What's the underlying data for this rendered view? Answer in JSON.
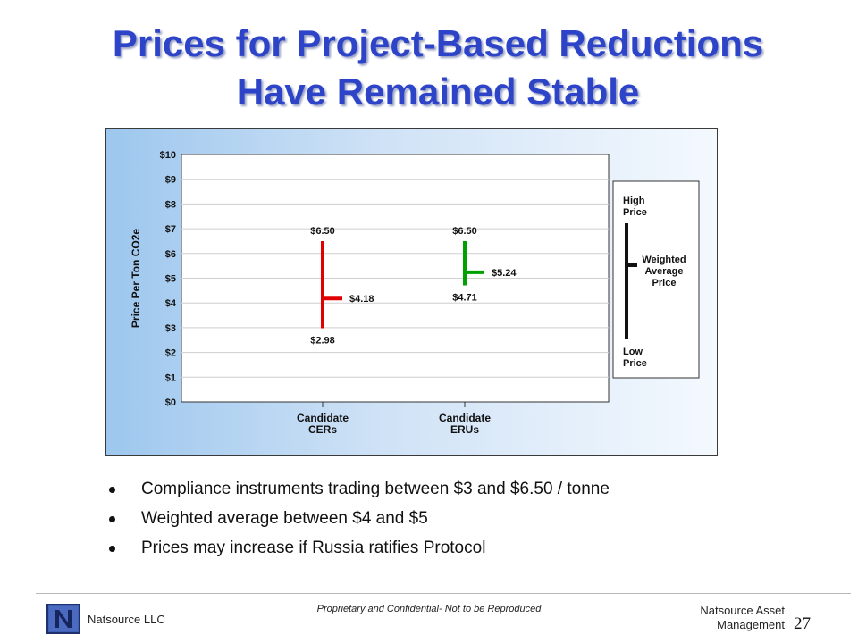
{
  "slide": {
    "title_line1": "Prices for Project-Based Reductions",
    "title_line2": "Have Remained Stable",
    "bullets": [
      "Compliance instruments trading between $3 and $6.50 / tonne",
      "Weighted average between $4 and $5",
      "Prices may increase if Russia ratifies Protocol"
    ],
    "footer": {
      "left": "Natsource LLC",
      "center": "Proprietary and Confidential- Not to be Reproduced",
      "right_line1": "Natsource Asset",
      "right_line2": "Management",
      "page_number": "27"
    }
  },
  "chart_data": {
    "type": "high-low-weighted",
    "ylabel": "Price Per Ton CO2e",
    "ylim": [
      0,
      10
    ],
    "yticks": [
      "$0",
      "$1",
      "$2",
      "$3",
      "$4",
      "$5",
      "$6",
      "$7",
      "$8",
      "$9",
      "$10"
    ],
    "categories": [
      "Candidate\nCERs",
      "Candidate\nERUs"
    ],
    "series": [
      {
        "category": "Candidate CERs",
        "high": 6.5,
        "low": 2.98,
        "weighted": 4.18,
        "high_label": "$6.50",
        "low_label": "$2.98",
        "weighted_label": "$4.18",
        "color": "#e00000"
      },
      {
        "category": "Candidate ERUs",
        "high": 6.5,
        "low": 4.71,
        "weighted": 5.24,
        "high_label": "$6.50",
        "low_label": "$4.71",
        "weighted_label": "$5.24",
        "color": "#00a000"
      }
    ],
    "legend": {
      "high": "High\nPrice",
      "weighted": "Weighted\nAverage\nPrice",
      "low": "Low\nPrice",
      "placement": "right"
    },
    "grid": true,
    "colors": {
      "panel_left": "#9dc7ee",
      "panel_right": "#f4f9fe",
      "title": "#2d44c8"
    }
  }
}
